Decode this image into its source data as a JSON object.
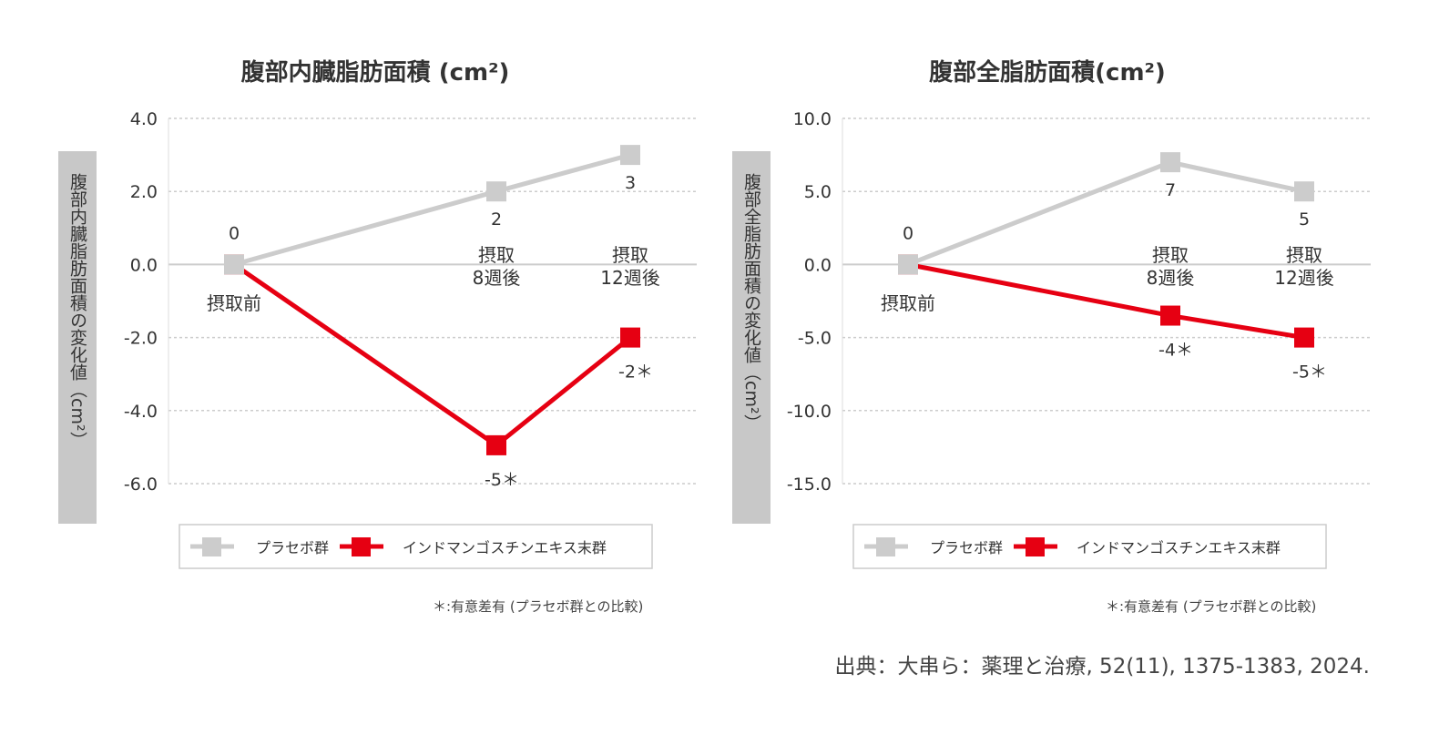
{
  "chart_data": [
    {
      "type": "line",
      "title": "腹部内臓脂肪面積 (cm²)",
      "ylabel": "腹部内臓脂肪面積の変化値（cm²）",
      "ylim": [
        -6.0,
        4.0
      ],
      "yticks": [
        "4.0",
        "2.0",
        "0.0",
        "-2.0",
        "-4.0",
        "-6.0"
      ],
      "ytick_values": [
        4,
        2,
        0,
        -2,
        -4,
        -6
      ],
      "categories": [
        "摂取前",
        "摂取\n8週後",
        "摂取\n12週後"
      ],
      "grid": true,
      "legend_position": "bottom",
      "series": [
        {
          "name": "プラセボ群",
          "color": "#cccccc",
          "values": [
            0,
            2,
            3
          ],
          "labels": [
            "0",
            "2",
            "3"
          ]
        },
        {
          "name": "インドマンゴスチンエキス末群",
          "color": "#e60012",
          "values": [
            0,
            -4.95,
            -2
          ],
          "labels": [
            "",
            "-5＊",
            "-2＊"
          ]
        }
      ],
      "footnote": "＊:有意差有 (プラセボ群との比較)"
    },
    {
      "type": "line",
      "title": "腹部全脂肪面積(cm²)",
      "ylabel": "腹部全脂肪面積の変化値（cm²）",
      "ylim": [
        -15.0,
        10.0
      ],
      "yticks": [
        "10.0",
        "5.0",
        "0.0",
        "-5.0",
        "-10.0",
        "-15.0"
      ],
      "ytick_values": [
        10,
        5,
        0,
        -5,
        -10,
        -15
      ],
      "categories": [
        "摂取前",
        "摂取\n8週後",
        "摂取\n12週後"
      ],
      "grid": true,
      "legend_position": "bottom",
      "series": [
        {
          "name": "プラセボ群",
          "color": "#cccccc",
          "values": [
            0,
            7,
            5
          ],
          "labels": [
            "0",
            "7",
            "5"
          ]
        },
        {
          "name": "インドマンゴスチンエキス末群",
          "color": "#e60012",
          "values": [
            0,
            -3.5,
            -5
          ],
          "labels": [
            "",
            "-4＊",
            "-5＊"
          ]
        }
      ],
      "footnote": "＊:有意差有 (プラセボ群との比較)"
    }
  ],
  "source": "出典：大串ら：薬理と治療, 52(11), 1375-1383, 2024."
}
